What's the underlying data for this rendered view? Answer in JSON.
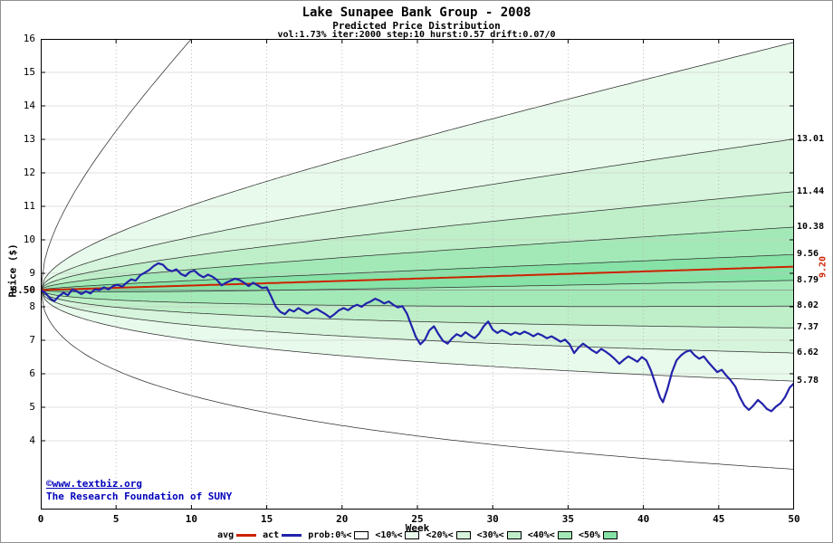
{
  "header": {
    "title": "Lake Sunapee Bank Group - 2008",
    "subtitle": "Predicted Price Distribution",
    "params": "vol:1.73% iter:2000 step:10 hurst:0.57 drift:0.07/0"
  },
  "credit": {
    "line1": "©www.textbiz.org",
    "line2": "The Research Foundation of SUNY"
  },
  "legend": {
    "items": [
      {
        "label": "avg",
        "type": "line",
        "color": "#cc2200"
      },
      {
        "label": "act",
        "type": "line",
        "color": "#2222aa"
      },
      {
        "label": "prob:0%<",
        "type": "box",
        "color": "#ffffff"
      },
      {
        "label": "<10%<",
        "type": "box",
        "color": "#e8faeb"
      },
      {
        "label": "<20%<",
        "type": "box",
        "color": "#d6f5dc"
      },
      {
        "label": "<30%<",
        "type": "box",
        "color": "#bfefc9"
      },
      {
        "label": "<40%<",
        "type": "box",
        "color": "#a3e9b7"
      },
      {
        "label": "<50%",
        "type": "box",
        "color": "#86e2a6"
      }
    ]
  },
  "chart_data": {
    "type": "line",
    "title": "Lake Sunapee Bank Group - 2008",
    "subtitle": "Predicted Price Distribution",
    "xlabel": "Week",
    "ylabel": "Price ($)",
    "xlim": [
      0,
      50
    ],
    "grid": true,
    "x_ticks": [
      0,
      5,
      10,
      15,
      20,
      25,
      30,
      35,
      40,
      45,
      50
    ],
    "y_ticks": [
      {
        "label": "16",
        "value": 16
      },
      {
        "label": "15",
        "value": 15
      },
      {
        "label": "14",
        "value": 14
      },
      {
        "label": "13",
        "value": 13
      },
      {
        "label": "12",
        "value": 12
      },
      {
        "label": "11",
        "value": 11
      },
      {
        "label": "10",
        "value": 10
      },
      {
        "label": "9",
        "value": 9
      },
      {
        "label": "8.50",
        "value": 8.5,
        "bold": true
      },
      {
        "label": "8",
        "value": 8
      },
      {
        "label": "7",
        "value": 7
      },
      {
        "label": "6",
        "value": 6
      },
      {
        "label": "5",
        "value": 5
      },
      {
        "label": "4",
        "value": 4
      }
    ],
    "right_labels": [
      {
        "label": "13.01",
        "value": 13.01
      },
      {
        "label": "11.44",
        "value": 11.44
      },
      {
        "label": "10.38",
        "value": 10.38
      },
      {
        "label": "9.56",
        "value": 9.56
      },
      {
        "label": "8.79",
        "value": 8.79
      },
      {
        "label": "8.02",
        "value": 8.02
      },
      {
        "label": "7.37",
        "value": 7.37
      },
      {
        "label": "6.62",
        "value": 6.62
      },
      {
        "label": "5.78",
        "value": 5.78
      }
    ],
    "right_axis_avg": {
      "label": "9.20",
      "value": 9.2,
      "color": "#cc2200"
    },
    "avg_color": "#cc2200",
    "act_color": "#2222aa",
    "fan": {
      "start_price": 8.5,
      "avg_end": 9.2,
      "upper_ends": [
        9.56,
        10.38,
        11.44,
        13.01,
        15.9
      ],
      "lower_ends": [
        8.79,
        8.02,
        7.37,
        6.62,
        5.78
      ],
      "extreme_top_exit_week": 10,
      "extreme_bottom_end": 3.15,
      "band_colors": [
        "#ffffff",
        "#e8faeb",
        "#d6f5dc",
        "#bfefc9",
        "#a3e9b7",
        "#86e2a6"
      ]
    },
    "actual_series": [
      [
        0.0,
        8.5
      ],
      [
        0.3,
        8.42
      ],
      [
        0.6,
        8.26
      ],
      [
        0.9,
        8.17
      ],
      [
        1.2,
        8.32
      ],
      [
        1.5,
        8.42
      ],
      [
        1.8,
        8.35
      ],
      [
        2.1,
        8.52
      ],
      [
        2.4,
        8.46
      ],
      [
        2.7,
        8.38
      ],
      [
        3.0,
        8.46
      ],
      [
        3.3,
        8.4
      ],
      [
        3.6,
        8.52
      ],
      [
        3.9,
        8.5
      ],
      [
        4.2,
        8.58
      ],
      [
        4.5,
        8.52
      ],
      [
        4.8,
        8.62
      ],
      [
        5.1,
        8.66
      ],
      [
        5.4,
        8.6
      ],
      [
        5.7,
        8.72
      ],
      [
        6.0,
        8.82
      ],
      [
        6.3,
        8.78
      ],
      [
        6.6,
        8.94
      ],
      [
        6.9,
        9.02
      ],
      [
        7.2,
        9.1
      ],
      [
        7.5,
        9.22
      ],
      [
        7.8,
        9.3
      ],
      [
        8.1,
        9.26
      ],
      [
        8.4,
        9.12
      ],
      [
        8.7,
        9.06
      ],
      [
        9.0,
        9.12
      ],
      [
        9.3,
        8.98
      ],
      [
        9.6,
        8.92
      ],
      [
        9.9,
        9.04
      ],
      [
        10.2,
        9.08
      ],
      [
        10.5,
        8.96
      ],
      [
        10.8,
        8.88
      ],
      [
        11.1,
        8.96
      ],
      [
        11.4,
        8.9
      ],
      [
        11.7,
        8.8
      ],
      [
        12.0,
        8.64
      ],
      [
        12.3,
        8.72
      ],
      [
        12.6,
        8.78
      ],
      [
        12.9,
        8.84
      ],
      [
        13.2,
        8.8
      ],
      [
        13.5,
        8.72
      ],
      [
        13.8,
        8.62
      ],
      [
        14.1,
        8.72
      ],
      [
        14.4,
        8.64
      ],
      [
        14.7,
        8.56
      ],
      [
        15.0,
        8.58
      ],
      [
        15.3,
        8.3
      ],
      [
        15.6,
        8.0
      ],
      [
        15.9,
        7.85
      ],
      [
        16.2,
        7.78
      ],
      [
        16.5,
        7.92
      ],
      [
        16.8,
        7.86
      ],
      [
        17.1,
        7.96
      ],
      [
        17.4,
        7.88
      ],
      [
        17.7,
        7.8
      ],
      [
        18.0,
        7.88
      ],
      [
        18.3,
        7.94
      ],
      [
        18.6,
        7.86
      ],
      [
        18.9,
        7.78
      ],
      [
        19.2,
        7.68
      ],
      [
        19.5,
        7.78
      ],
      [
        19.8,
        7.9
      ],
      [
        20.1,
        7.96
      ],
      [
        20.4,
        7.9
      ],
      [
        20.7,
        8.0
      ],
      [
        21.0,
        8.06
      ],
      [
        21.3,
        8.0
      ],
      [
        21.6,
        8.1
      ],
      [
        21.9,
        8.16
      ],
      [
        22.2,
        8.24
      ],
      [
        22.5,
        8.18
      ],
      [
        22.8,
        8.1
      ],
      [
        23.1,
        8.16
      ],
      [
        23.4,
        8.06
      ],
      [
        23.7,
        7.98
      ],
      [
        24.0,
        8.02
      ],
      [
        24.3,
        7.8
      ],
      [
        24.6,
        7.45
      ],
      [
        24.9,
        7.1
      ],
      [
        25.2,
        6.88
      ],
      [
        25.5,
        7.02
      ],
      [
        25.8,
        7.3
      ],
      [
        26.1,
        7.42
      ],
      [
        26.4,
        7.18
      ],
      [
        26.7,
        6.98
      ],
      [
        27.0,
        6.9
      ],
      [
        27.3,
        7.06
      ],
      [
        27.6,
        7.18
      ],
      [
        27.9,
        7.12
      ],
      [
        28.2,
        7.24
      ],
      [
        28.5,
        7.14
      ],
      [
        28.8,
        7.06
      ],
      [
        29.1,
        7.2
      ],
      [
        29.4,
        7.42
      ],
      [
        29.7,
        7.56
      ],
      [
        30.0,
        7.32
      ],
      [
        30.3,
        7.22
      ],
      [
        30.6,
        7.3
      ],
      [
        30.9,
        7.24
      ],
      [
        31.2,
        7.16
      ],
      [
        31.5,
        7.24
      ],
      [
        31.8,
        7.18
      ],
      [
        32.1,
        7.26
      ],
      [
        32.4,
        7.2
      ],
      [
        32.7,
        7.12
      ],
      [
        33.0,
        7.2
      ],
      [
        33.3,
        7.14
      ],
      [
        33.6,
        7.06
      ],
      [
        33.9,
        7.12
      ],
      [
        34.2,
        7.04
      ],
      [
        34.5,
        6.96
      ],
      [
        34.8,
        7.02
      ],
      [
        35.1,
        6.88
      ],
      [
        35.4,
        6.62
      ],
      [
        35.7,
        6.78
      ],
      [
        36.0,
        6.9
      ],
      [
        36.3,
        6.8
      ],
      [
        36.6,
        6.7
      ],
      [
        36.9,
        6.62
      ],
      [
        37.2,
        6.74
      ],
      [
        37.5,
        6.66
      ],
      [
        37.8,
        6.56
      ],
      [
        38.1,
        6.44
      ],
      [
        38.4,
        6.3
      ],
      [
        38.7,
        6.42
      ],
      [
        39.0,
        6.52
      ],
      [
        39.3,
        6.44
      ],
      [
        39.6,
        6.36
      ],
      [
        39.9,
        6.5
      ],
      [
        40.2,
        6.4
      ],
      [
        40.5,
        6.1
      ],
      [
        40.8,
        5.7
      ],
      [
        41.1,
        5.3
      ],
      [
        41.3,
        5.15
      ],
      [
        41.6,
        5.55
      ],
      [
        41.9,
        6.05
      ],
      [
        42.2,
        6.4
      ],
      [
        42.5,
        6.55
      ],
      [
        42.8,
        6.65
      ],
      [
        43.1,
        6.7
      ],
      [
        43.4,
        6.55
      ],
      [
        43.7,
        6.45
      ],
      [
        44.0,
        6.52
      ],
      [
        44.3,
        6.35
      ],
      [
        44.6,
        6.2
      ],
      [
        44.9,
        6.05
      ],
      [
        45.2,
        6.12
      ],
      [
        45.5,
        5.95
      ],
      [
        45.8,
        5.8
      ],
      [
        46.1,
        5.62
      ],
      [
        46.4,
        5.3
      ],
      [
        46.7,
        5.05
      ],
      [
        47.0,
        4.92
      ],
      [
        47.3,
        5.05
      ],
      [
        47.6,
        5.22
      ],
      [
        47.9,
        5.1
      ],
      [
        48.2,
        4.95
      ],
      [
        48.5,
        4.88
      ],
      [
        48.8,
        5.02
      ],
      [
        49.1,
        5.12
      ],
      [
        49.4,
        5.3
      ],
      [
        49.7,
        5.58
      ],
      [
        50.0,
        5.72
      ]
    ]
  }
}
